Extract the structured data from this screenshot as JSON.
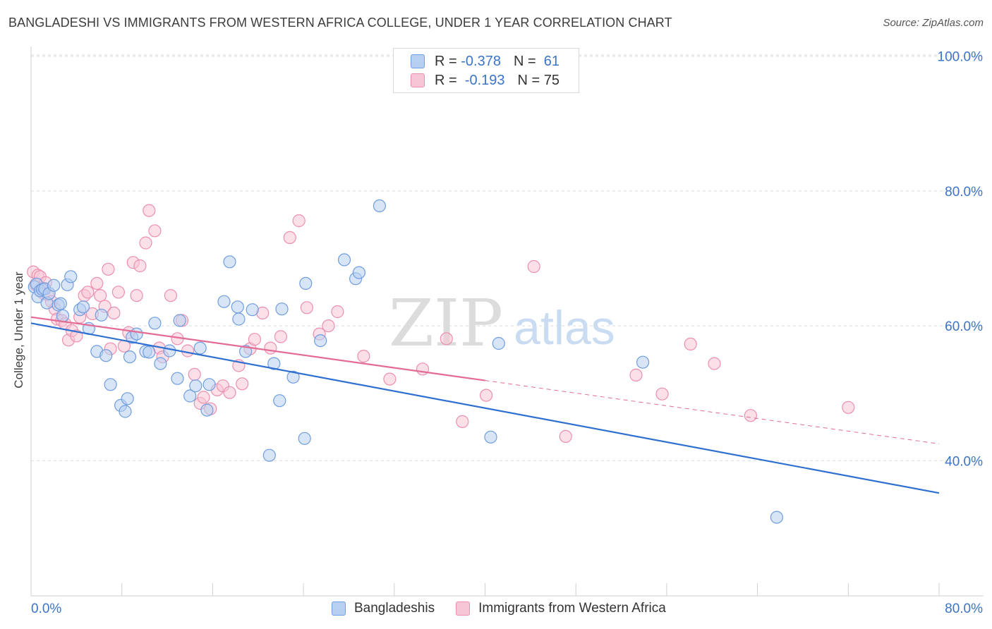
{
  "title": "BANGLADESHI VS IMMIGRANTS FROM WESTERN AFRICA COLLEGE, UNDER 1 YEAR CORRELATION CHART",
  "source": "Source: ZipAtlas.com",
  "watermark": {
    "zip": "ZIP",
    "atlas": "atlas"
  },
  "colors": {
    "blue_fill": "#b7cff1",
    "blue_stroke": "#6f9de0",
    "blue_line": "#2e6fd0",
    "pink_fill": "#f7c6d6",
    "pink_stroke": "#ec8fb0",
    "pink_line": "#e36b96",
    "tick_label": "#3b74c8",
    "grid": "#dcdcdc"
  },
  "legend_top": [
    {
      "r_label": "R =",
      "r_value": "-0.378",
      "n_label": "N =",
      "n_value": "61"
    },
    {
      "r_label": "R =",
      "r_value": "-0.193",
      "n_label": "N = 75",
      "n_value": ""
    }
  ],
  "legend_bottom": [
    "Bangladeshis",
    "Immigrants from Western Africa"
  ],
  "chart_data": {
    "type": "scatter",
    "title": "BANGLADESHI VS IMMIGRANTS FROM WESTERN AFRICA COLLEGE, UNDER 1 YEAR CORRELATION CHART",
    "xlabel": "",
    "ylabel": "College, Under 1 year",
    "xlim": [
      0,
      80
    ],
    "ylim": [
      20,
      100
    ],
    "x_tick_labels": [
      "0.0%",
      "80.0%"
    ],
    "y_ticks": [
      40,
      60,
      80,
      100
    ],
    "y_tick_labels": [
      "40.0%",
      "60.0%",
      "80.0%",
      "100.0%"
    ],
    "grid": true,
    "legend": "top-center",
    "series": [
      {
        "name": "Bangladeshis",
        "points": [
          [
            0.3,
            65.8
          ],
          [
            0.5,
            66.2
          ],
          [
            0.6,
            64.3
          ],
          [
            0.8,
            65.2
          ],
          [
            1.0,
            65.4
          ],
          [
            1.2,
            65.5
          ],
          [
            1.4,
            63.4
          ],
          [
            1.6,
            64.8
          ],
          [
            2.0,
            66.0
          ],
          [
            2.4,
            63.1
          ],
          [
            2.6,
            63.3
          ],
          [
            2.8,
            61.5
          ],
          [
            3.2,
            66.1
          ],
          [
            3.5,
            67.3
          ],
          [
            4.3,
            62.4
          ],
          [
            4.6,
            62.8
          ],
          [
            5.1,
            59.6
          ],
          [
            5.8,
            56.2
          ],
          [
            6.2,
            61.6
          ],
          [
            6.6,
            55.6
          ],
          [
            7.0,
            51.3
          ],
          [
            7.9,
            48.2
          ],
          [
            8.3,
            47.3
          ],
          [
            8.5,
            49.2
          ],
          [
            8.7,
            55.4
          ],
          [
            8.9,
            58.3
          ],
          [
            9.3,
            58.8
          ],
          [
            10.1,
            56.2
          ],
          [
            10.4,
            56.1
          ],
          [
            10.9,
            60.4
          ],
          [
            11.4,
            54.4
          ],
          [
            12.2,
            56.3
          ],
          [
            12.9,
            52.2
          ],
          [
            13.1,
            60.8
          ],
          [
            14.0,
            49.6
          ],
          [
            14.5,
            51.1
          ],
          [
            14.9,
            56.7
          ],
          [
            15.5,
            47.5
          ],
          [
            15.7,
            51.3
          ],
          [
            17.0,
            63.6
          ],
          [
            17.5,
            69.5
          ],
          [
            18.2,
            62.8
          ],
          [
            18.3,
            61.0
          ],
          [
            18.9,
            56.2
          ],
          [
            19.5,
            62.4
          ],
          [
            21.0,
            40.8
          ],
          [
            21.4,
            54.4
          ],
          [
            21.9,
            48.9
          ],
          [
            22.1,
            62.5
          ],
          [
            23.1,
            52.4
          ],
          [
            24.1,
            43.3
          ],
          [
            24.2,
            66.3
          ],
          [
            25.5,
            57.8
          ],
          [
            27.6,
            69.8
          ],
          [
            28.6,
            67.0
          ],
          [
            28.9,
            67.9
          ],
          [
            30.7,
            77.8
          ],
          [
            40.5,
            43.5
          ],
          [
            41.2,
            57.4
          ],
          [
            53.9,
            54.6
          ],
          [
            65.7,
            31.6
          ]
        ]
      },
      {
        "name": "Immigrants from Western Africa",
        "points": [
          [
            0.2,
            68.0
          ],
          [
            0.4,
            66.1
          ],
          [
            0.6,
            67.5
          ],
          [
            0.8,
            67.3
          ],
          [
            1.0,
            65.6
          ],
          [
            1.1,
            64.8
          ],
          [
            1.3,
            66.4
          ],
          [
            1.5,
            64.6
          ],
          [
            1.8,
            63.6
          ],
          [
            2.1,
            62.5
          ],
          [
            2.3,
            61.0
          ],
          [
            2.7,
            60.8
          ],
          [
            3.0,
            60.3
          ],
          [
            3.3,
            57.9
          ],
          [
            3.6,
            59.3
          ],
          [
            4.0,
            58.5
          ],
          [
            4.3,
            61.3
          ],
          [
            4.7,
            64.5
          ],
          [
            5.0,
            65.0
          ],
          [
            5.4,
            61.8
          ],
          [
            5.8,
            66.3
          ],
          [
            6.1,
            64.5
          ],
          [
            6.5,
            62.9
          ],
          [
            6.8,
            68.4
          ],
          [
            7.0,
            56.6
          ],
          [
            7.3,
            61.9
          ],
          [
            7.7,
            65.0
          ],
          [
            8.2,
            57.0
          ],
          [
            8.6,
            59.0
          ],
          [
            9.0,
            69.4
          ],
          [
            9.3,
            64.5
          ],
          [
            9.6,
            68.9
          ],
          [
            10.1,
            72.3
          ],
          [
            10.4,
            77.1
          ],
          [
            10.9,
            74.1
          ],
          [
            11.3,
            56.7
          ],
          [
            11.6,
            55.4
          ],
          [
            12.3,
            64.5
          ],
          [
            12.9,
            58.1
          ],
          [
            13.3,
            60.8
          ],
          [
            13.8,
            56.3
          ],
          [
            14.4,
            52.8
          ],
          [
            14.9,
            48.5
          ],
          [
            15.2,
            49.4
          ],
          [
            15.8,
            47.7
          ],
          [
            16.4,
            50.5
          ],
          [
            16.9,
            51.1
          ],
          [
            17.5,
            50.1
          ],
          [
            18.3,
            54.1
          ],
          [
            18.6,
            51.4
          ],
          [
            19.3,
            56.6
          ],
          [
            19.7,
            58.0
          ],
          [
            20.4,
            61.9
          ],
          [
            21.1,
            56.7
          ],
          [
            22.0,
            58.4
          ],
          [
            22.8,
            73.1
          ],
          [
            23.6,
            75.6
          ],
          [
            24.3,
            62.7
          ],
          [
            25.4,
            58.8
          ],
          [
            26.2,
            60.0
          ],
          [
            27.0,
            62.1
          ],
          [
            29.3,
            55.5
          ],
          [
            31.6,
            52.1
          ],
          [
            34.5,
            53.6
          ],
          [
            36.6,
            58.1
          ],
          [
            38.0,
            45.8
          ],
          [
            40.1,
            49.7
          ],
          [
            44.3,
            68.8
          ],
          [
            47.1,
            43.6
          ],
          [
            53.3,
            52.7
          ],
          [
            55.6,
            49.9
          ],
          [
            58.1,
            57.3
          ],
          [
            60.2,
            54.4
          ],
          [
            63.4,
            46.7
          ],
          [
            72.0,
            47.9
          ]
        ]
      }
    ],
    "trend_lines": [
      {
        "series": "Bangladeshis",
        "solid_x": [
          0,
          80
        ],
        "y": [
          60.4,
          35.2
        ]
      },
      {
        "series": "Immigrants from Western Africa",
        "solid_x": [
          0,
          40
        ],
        "dashed_x": [
          40,
          80
        ],
        "y_at_0": 61.3,
        "y_at_80": 42.5
      }
    ]
  }
}
